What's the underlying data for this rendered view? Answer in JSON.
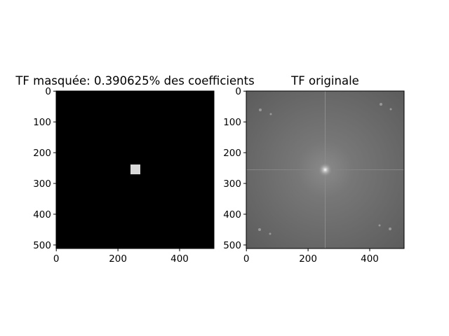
{
  "chart_data": [
    {
      "type": "image",
      "title": "TF masquée: 0.390625% des coefficients",
      "xlim": [
        -0.5,
        511.5
      ],
      "ylim": [
        511.5,
        -0.5
      ],
      "xticks": [
        0,
        200,
        400
      ],
      "yticks": [
        0,
        100,
        200,
        300,
        400,
        500
      ]
    },
    {
      "type": "image",
      "title": "TF originale",
      "xlim": [
        -0.5,
        511.5
      ],
      "ylim": [
        511.5,
        -0.5
      ],
      "xticks": [
        0,
        200,
        400
      ],
      "yticks": [
        0,
        100,
        200,
        300,
        400,
        500
      ]
    }
  ]
}
